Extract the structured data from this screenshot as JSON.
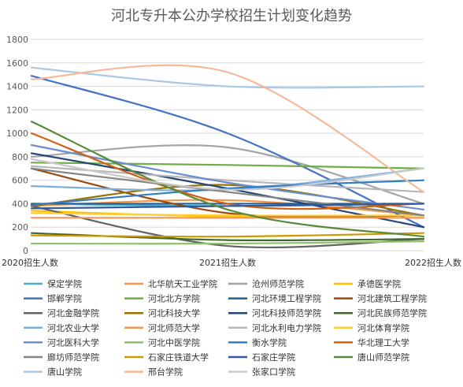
{
  "chart_data": {
    "type": "line",
    "smooth": true,
    "title": "河北专升本公办学校招生计划变化趋势",
    "xlabel": "",
    "ylabel": "",
    "categories": [
      "2020招生人数",
      "2021招生人数",
      "2022招生人数"
    ],
    "ylim": [
      0,
      1800
    ],
    "yticks": [
      0,
      200,
      400,
      600,
      800,
      1000,
      1200,
      1400,
      1600,
      1800
    ],
    "grid": true,
    "legend_position": "bottom",
    "series": [
      {
        "name": "保定学院",
        "color": "#4bacc6",
        "values": [
          400,
          380,
          400
        ]
      },
      {
        "name": "北华航天工业学院",
        "color": "#f79646",
        "values": [
          380,
          430,
          300
        ]
      },
      {
        "name": "沧州师范学院",
        "color": "#a5a5a5",
        "values": [
          800,
          880,
          400
        ]
      },
      {
        "name": "承德医学院",
        "color": "#ffc000",
        "values": [
          340,
          290,
          300
        ]
      },
      {
        "name": "邯郸学院",
        "color": "#4472c4",
        "values": [
          1490,
          1000,
          200
        ]
      },
      {
        "name": "河北北方学院",
        "color": "#70ad47",
        "values": [
          750,
          730,
          700
        ]
      },
      {
        "name": "河北环境工程学院",
        "color": "#255e91",
        "values": [
          400,
          400,
          400
        ]
      },
      {
        "name": "河北建筑工程学院",
        "color": "#9e480e",
        "values": [
          700,
          320,
          300
        ]
      },
      {
        "name": "河北金融学院",
        "color": "#636363",
        "values": [
          380,
          40,
          100
        ]
      },
      {
        "name": "河北科技大学",
        "color": "#997300",
        "values": [
          380,
          560,
          300
        ]
      },
      {
        "name": "河北科技师范学院",
        "color": "#264478",
        "values": [
          830,
          530,
          200
        ]
      },
      {
        "name": "河北民族师范学院",
        "color": "#43682b",
        "values": [
          150,
          90,
          100
        ]
      },
      {
        "name": "河北农业大学",
        "color": "#7cafdd",
        "values": [
          550,
          520,
          700
        ]
      },
      {
        "name": "河北师范大学",
        "color": "#f1975a",
        "values": [
          280,
          280,
          280
        ]
      },
      {
        "name": "河北水利电力学院",
        "color": "#b7b7b7",
        "values": [
          720,
          600,
          500
        ]
      },
      {
        "name": "河北体育学院",
        "color": "#ffcd33",
        "values": [
          320,
          300,
          300
        ]
      },
      {
        "name": "河北医科大学",
        "color": "#698ed0",
        "values": [
          900,
          580,
          350
        ]
      },
      {
        "name": "河北中医学院",
        "color": "#8cc168",
        "values": [
          60,
          60,
          80
        ]
      },
      {
        "name": "衡水学院",
        "color": "#327dc2",
        "values": [
          390,
          530,
          600
        ]
      },
      {
        "name": "华北理工大学",
        "color": "#d26012",
        "values": [
          1000,
          400,
          400
        ]
      },
      {
        "name": "廊坊师范学院",
        "color": "#848484",
        "values": [
          700,
          500,
          300
        ]
      },
      {
        "name": "石家庄铁道大学",
        "color": "#cc9a00",
        "values": [
          130,
          120,
          150
        ]
      },
      {
        "name": "石家庄学院",
        "color": "#335aa1",
        "values": [
          360,
          380,
          400
        ]
      },
      {
        "name": "唐山师范学院",
        "color": "#5a8a39",
        "values": [
          1100,
          350,
          120
        ]
      },
      {
        "name": "唐山学院",
        "color": "#a9c8e8",
        "values": [
          1560,
          1400,
          1400
        ]
      },
      {
        "name": "邢台学院",
        "color": "#f5b99a",
        "values": [
          1460,
          1520,
          500
        ]
      },
      {
        "name": "张家口学院",
        "color": "#c9c9c9",
        "values": [
          780,
          520,
          700
        ]
      }
    ]
  }
}
